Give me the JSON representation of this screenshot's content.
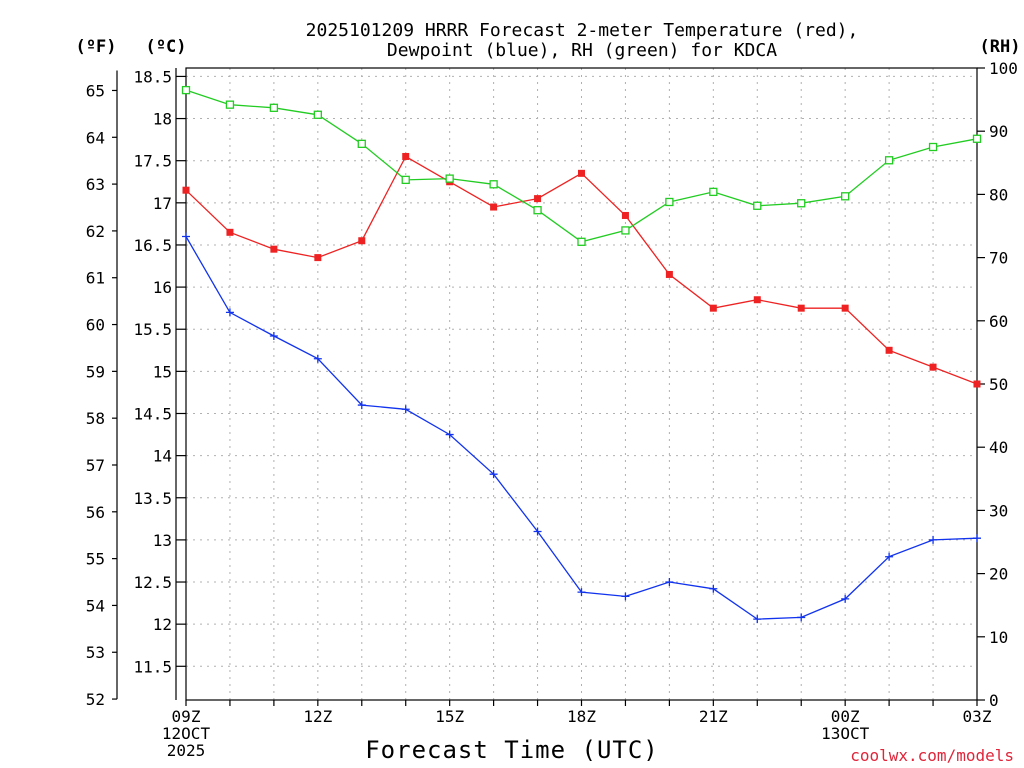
{
  "chart_data": {
    "type": "line",
    "title_lines": [
      "2025101209 HRRR Forecast 2-meter Temperature (red),",
      "Dewpoint (blue), RH (green) for KDCA"
    ],
    "xlabel": "Forecast Time (UTC)",
    "credit": "coolwx.com/models",
    "x_hours": [
      0,
      1,
      2,
      3,
      4,
      5,
      6,
      7,
      8,
      9,
      10,
      11,
      12,
      13,
      14,
      15,
      16,
      17,
      18
    ],
    "x_range": [
      0,
      18
    ],
    "x_ticks": [
      {
        "hour": 0,
        "lines": [
          "09Z",
          "12OCT",
          "2025"
        ]
      },
      {
        "hour": 3,
        "lines": [
          "12Z"
        ]
      },
      {
        "hour": 6,
        "lines": [
          "15Z"
        ]
      },
      {
        "hour": 9,
        "lines": [
          "18Z"
        ]
      },
      {
        "hour": 12,
        "lines": [
          "21Z"
        ]
      },
      {
        "hour": 15,
        "lines": [
          "00Z",
          "13OCT"
        ]
      },
      {
        "hour": 18,
        "lines": [
          "03Z"
        ]
      }
    ],
    "left_axis_c": {
      "unit_label": "(ºC)",
      "range": [
        11.1,
        18.6
      ],
      "ticks": [
        "11.5",
        "12",
        "12.5",
        "13",
        "13.5",
        "14",
        "14.5",
        "15",
        "15.5",
        "16",
        "16.5",
        "17",
        "17.5",
        "18",
        "18.5"
      ]
    },
    "left_axis_f": {
      "unit_label": "(ºF)",
      "ticks": [
        "52",
        "53",
        "54",
        "55",
        "56",
        "57",
        "58",
        "59",
        "60",
        "61",
        "62",
        "63",
        "64",
        "65"
      ]
    },
    "right_axis_rh": {
      "unit_label": "(RH)",
      "range": [
        0,
        100
      ],
      "ticks": [
        "0",
        "10",
        "20",
        "30",
        "40",
        "50",
        "60",
        "70",
        "80",
        "90",
        "100"
      ]
    },
    "series": [
      {
        "name": "Temperature",
        "axis": "c",
        "color": "#ee2222",
        "marker": "filled-square",
        "values": [
          17.15,
          16.65,
          16.45,
          16.35,
          16.55,
          17.55,
          17.25,
          16.95,
          17.05,
          17.35,
          16.85,
          16.15,
          15.75,
          15.85,
          15.75,
          15.75,
          15.25,
          15.05,
          14.85
        ]
      },
      {
        "name": "Dewpoint",
        "axis": "c",
        "color": "#1133ee",
        "marker": "plus",
        "values": [
          16.6,
          15.7,
          15.42,
          15.15,
          14.6,
          14.55,
          14.25,
          13.78,
          13.1,
          12.38,
          12.33,
          12.5,
          12.42,
          12.06,
          12.08,
          12.3,
          12.8,
          13.0,
          13.02
        ]
      },
      {
        "name": "RH",
        "axis": "rh",
        "color": "#22cc22",
        "marker": "open-square",
        "values": [
          96.5,
          94.2,
          93.7,
          92.6,
          88,
          82.3,
          82.5,
          81.6,
          77.5,
          72.5,
          74.3,
          78.8,
          80.4,
          78.2,
          78.6,
          79.7,
          85.4,
          87.5,
          88.8
        ]
      }
    ]
  }
}
